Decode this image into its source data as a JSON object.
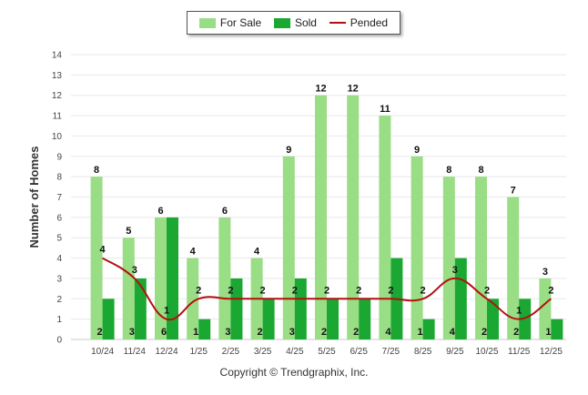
{
  "chart_data": {
    "type": "bar",
    "title": "",
    "xlabel": "",
    "ylabel": "Number of Homes",
    "ylim": [
      0,
      14
    ],
    "yticks": [
      0,
      1,
      2,
      3,
      4,
      5,
      6,
      7,
      8,
      9,
      10,
      11,
      12,
      13,
      14
    ],
    "grid": true,
    "legend_position": "top-center",
    "categories": [
      "10/24",
      "11/24",
      "12/24",
      "1/25",
      "2/25",
      "3/25",
      "4/25",
      "5/25",
      "6/25",
      "7/25",
      "8/25",
      "9/25",
      "10/25",
      "11/25",
      "12/25"
    ],
    "series": [
      {
        "name": "For Sale",
        "kind": "bar",
        "color": "#99dd85",
        "values": [
          8,
          5,
          6,
          4,
          6,
          4,
          9,
          12,
          12,
          11,
          9,
          8,
          8,
          7,
          3
        ]
      },
      {
        "name": "Sold",
        "kind": "bar",
        "color": "#1aa832",
        "values": [
          2,
          3,
          6,
          1,
          3,
          2,
          3,
          2,
          2,
          4,
          1,
          4,
          2,
          2,
          1
        ]
      },
      {
        "name": "Pended",
        "kind": "line",
        "color": "#b50e0e",
        "values": [
          4,
          3,
          1,
          2,
          2,
          2,
          2,
          2,
          2,
          2,
          2,
          3,
          2,
          1,
          2
        ]
      }
    ]
  },
  "legend": {
    "for_sale": "For Sale",
    "sold": "Sold",
    "pended": "Pended"
  },
  "footer": {
    "copyright": "Copyright © Trendgraphix, Inc."
  }
}
